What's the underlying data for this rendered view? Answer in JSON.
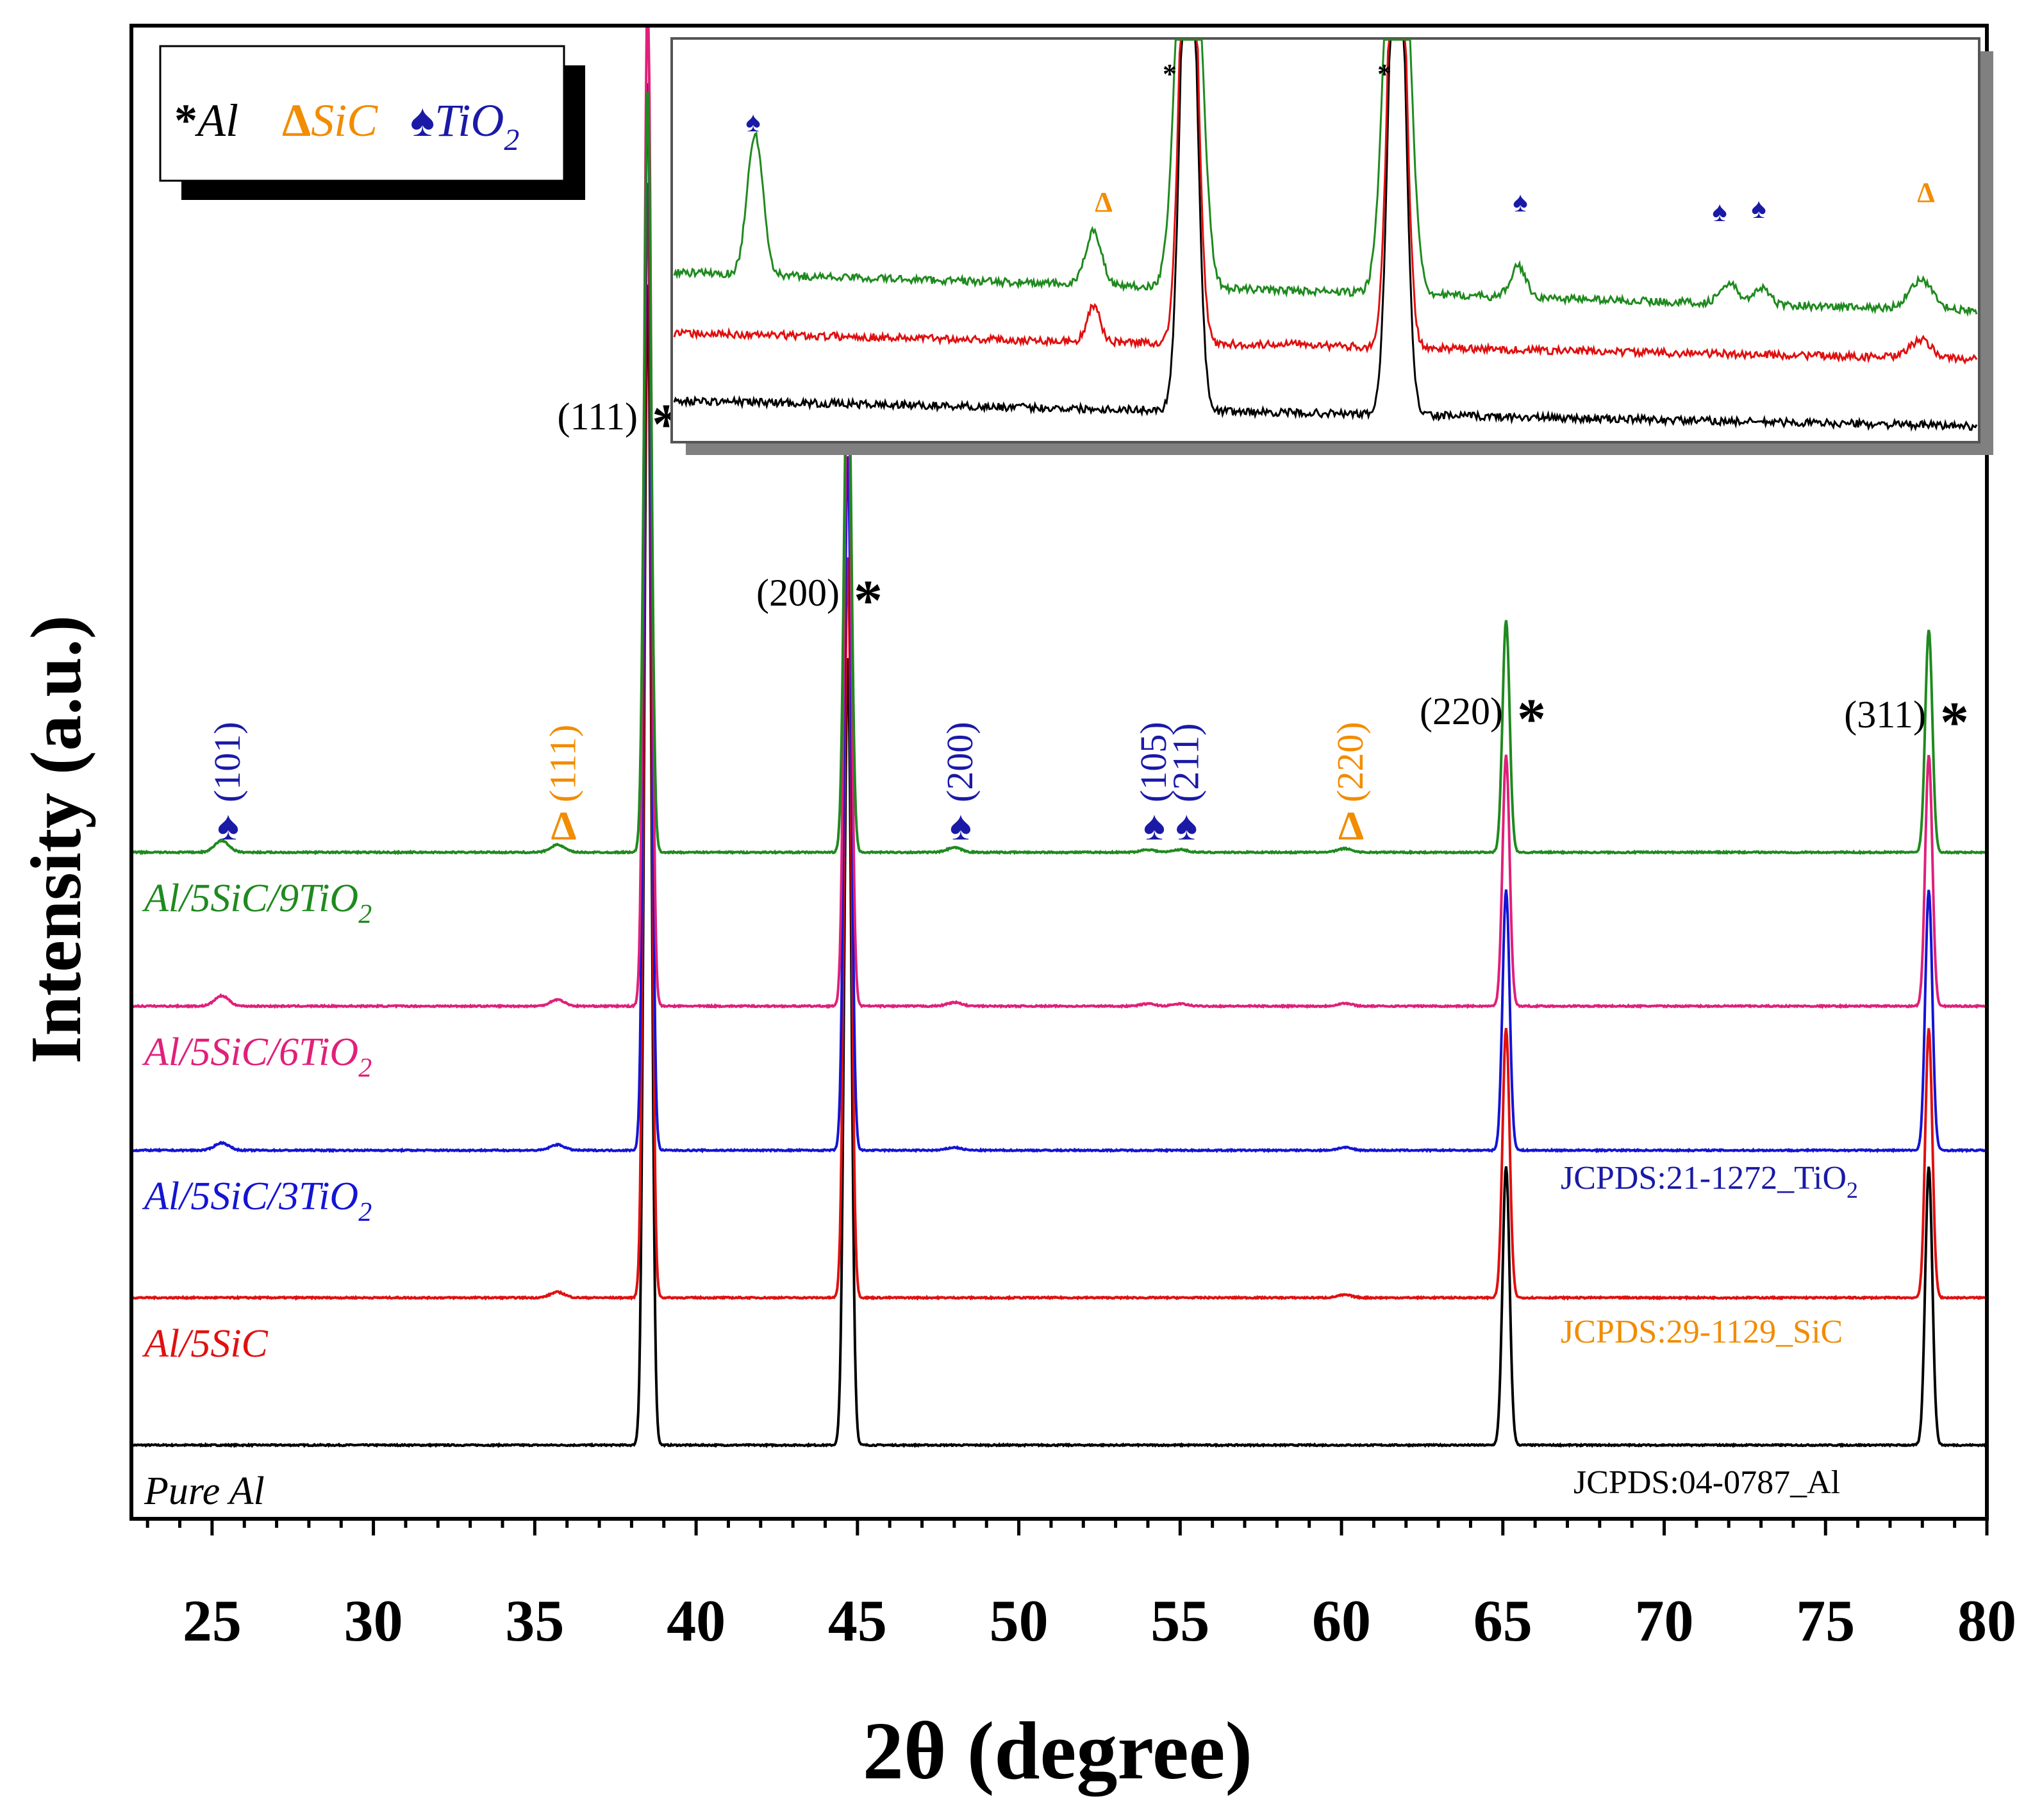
{
  "chart_data": {
    "type": "line",
    "xlabel": "2θ (degree)",
    "ylabel": "Intensity (a.u.)",
    "xlim": [
      22.5,
      80
    ],
    "x_ticks": [
      25,
      30,
      35,
      40,
      45,
      50,
      55,
      60,
      65,
      70,
      75,
      80
    ],
    "y_ticks": [],
    "legend": {
      "position": "top-left",
      "entries": [
        {
          "symbol": "*",
          "label": "Al",
          "color": "#000000"
        },
        {
          "symbol": "Δ",
          "label": "SiC",
          "color": "#f28c00"
        },
        {
          "symbol": "♠",
          "label": "TiO",
          "sub": "2",
          "color": "#1a1aa6"
        }
      ]
    },
    "series": [
      {
        "name": "Pure Al",
        "label_main": "Pure Al",
        "label_sub": "",
        "color": "#000000",
        "baseline": 0,
        "peaks": [
          [
            38.5,
            2500
          ],
          [
            44.7,
            1700
          ],
          [
            65.1,
            600
          ],
          [
            78.2,
            600
          ]
        ]
      },
      {
        "name": "Al/5SiC",
        "label_main": "Al/5SiC",
        "label_sub": "",
        "color": "#e01010",
        "baseline": 230,
        "peaks": [
          [
            35.7,
            12
          ],
          [
            38.5,
            2400
          ],
          [
            44.7,
            1600
          ],
          [
            60.1,
            6
          ],
          [
            65.1,
            580
          ],
          [
            78.2,
            580
          ]
        ]
      },
      {
        "name": "Al/5SiC/3TiO2",
        "label_main": "Al/5SiC/3TiO",
        "label_sub": "2",
        "color": "#1414d4",
        "baseline": 460,
        "peaks": [
          [
            25.3,
            16
          ],
          [
            35.7,
            12
          ],
          [
            38.5,
            2300
          ],
          [
            44.7,
            1500
          ],
          [
            48.0,
            6
          ],
          [
            60.1,
            6
          ],
          [
            65.1,
            560
          ],
          [
            78.2,
            560
          ]
        ]
      },
      {
        "name": "Al/5SiC/6TiO2",
        "label_main": "Al/5SiC/6TiO",
        "label_sub": "2",
        "color": "#e0207a",
        "baseline": 690,
        "peaks": [
          [
            25.3,
            22
          ],
          [
            35.7,
            14
          ],
          [
            38.5,
            2200
          ],
          [
            44.7,
            1400
          ],
          [
            48.0,
            8
          ],
          [
            54.0,
            5
          ],
          [
            55.0,
            5
          ],
          [
            60.1,
            6
          ],
          [
            65.1,
            540
          ],
          [
            78.2,
            540
          ]
        ]
      },
      {
        "name": "Al/5SiC/9TiO2",
        "label_main": "Al/5SiC/9TiO",
        "label_sub": "2",
        "color": "#1f8a1f",
        "baseline": 920,
        "peaks": [
          [
            25.3,
            25
          ],
          [
            35.7,
            16
          ],
          [
            38.5,
            1640
          ],
          [
            44.7,
            1150
          ],
          [
            48.0,
            10
          ],
          [
            54.0,
            6
          ],
          [
            55.0,
            6
          ],
          [
            60.1,
            8
          ],
          [
            65.1,
            500
          ],
          [
            78.2,
            480
          ]
        ]
      }
    ],
    "peak_labels": [
      {
        "text": "(111)",
        "marker": "*",
        "phase": "Al",
        "x": 38.5
      },
      {
        "text": "(200)",
        "marker": "*",
        "phase": "Al",
        "x": 44.7
      },
      {
        "text": "(220)",
        "marker": "*",
        "phase": "Al",
        "x": 65.1
      },
      {
        "text": "(311)",
        "marker": "*",
        "phase": "Al",
        "x": 78.2
      },
      {
        "text": "(101)",
        "marker": "♠",
        "phase": "TiO2",
        "x": 25.3
      },
      {
        "text": "(111)",
        "marker": "Δ",
        "phase": "SiC",
        "x": 35.7
      },
      {
        "text": "(200)",
        "marker": "♠",
        "phase": "TiO2",
        "x": 48.0
      },
      {
        "text": "(105)",
        "marker": "♠",
        "phase": "TiO2",
        "x": 54.0
      },
      {
        "text": "(211)",
        "marker": "♠",
        "phase": "TiO2",
        "x": 55.0
      },
      {
        "text": "(220)",
        "marker": "Δ",
        "phase": "SiC",
        "x": 60.1
      }
    ],
    "references": [
      {
        "main": "JCPDS:21-1272_TiO",
        "sub": "2",
        "color": "#1a1aa6"
      },
      {
        "main": "JCPDS:29-1129_SiC",
        "sub": "",
        "color": "#f28c00"
      },
      {
        "main": "JCPDS:04-0787_Al",
        "sub": "",
        "color": "#000000"
      }
    ],
    "inset": {
      "description_series": [
        "Pure Al",
        "Al/5SiC",
        "Al/5SiC/9TiO2"
      ],
      "markers": [
        "*",
        "*",
        "♠",
        "Δ",
        "♠",
        "♠",
        "♠",
        "Δ"
      ]
    }
  }
}
